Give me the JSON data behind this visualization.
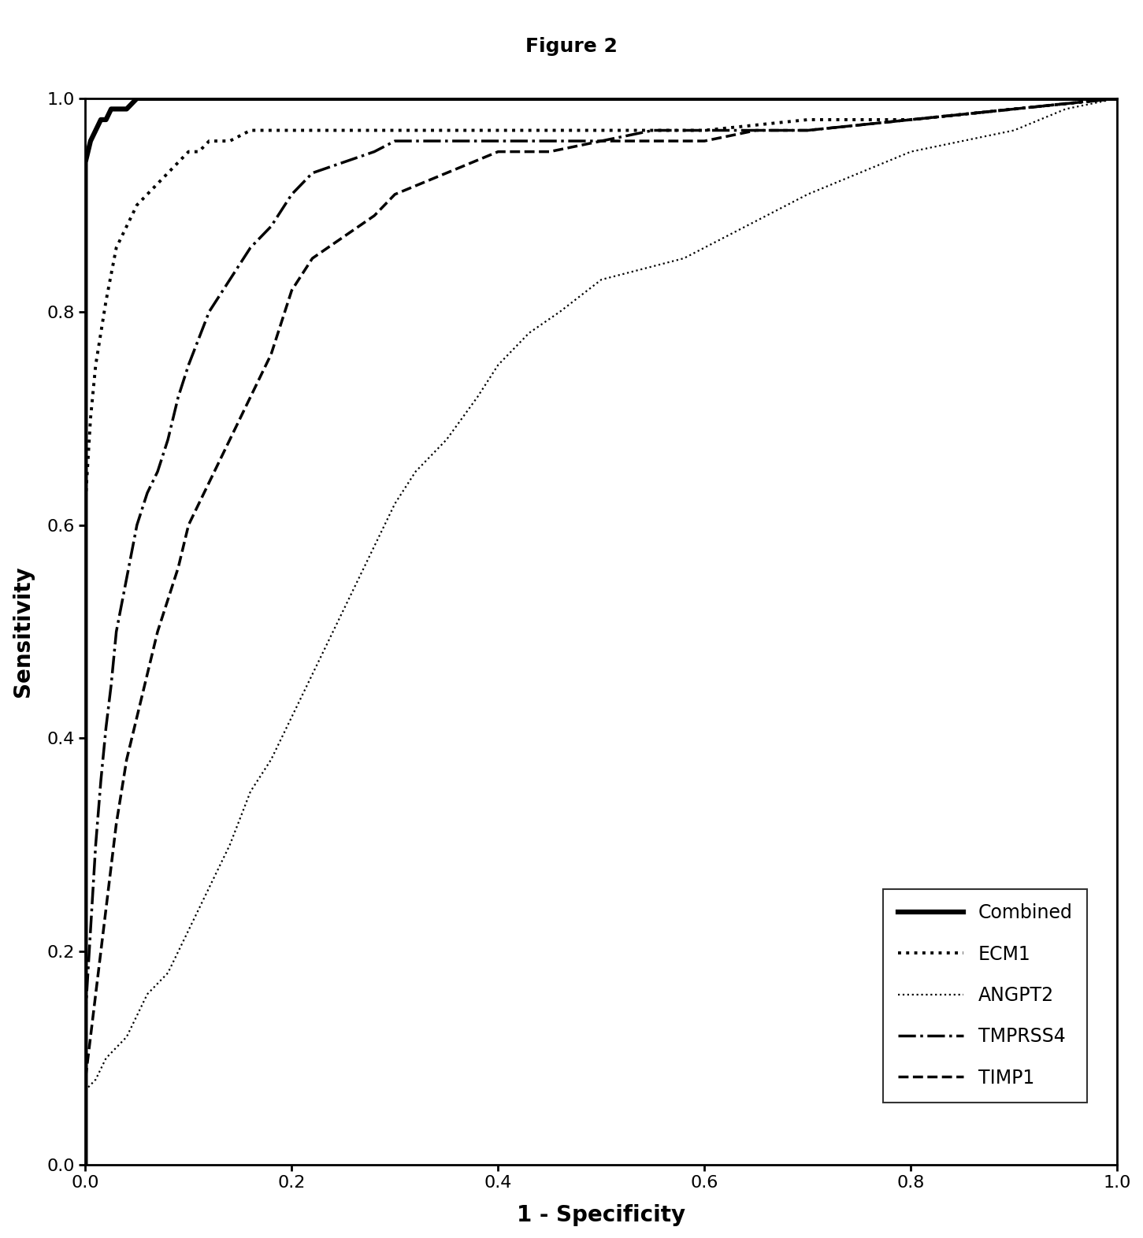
{
  "title": "Figure 2",
  "xlabel": "1 - Specificity",
  "ylabel": "Sensitivity",
  "xlim": [
    0.0,
    1.0
  ],
  "ylim": [
    0.0,
    1.0
  ],
  "xticks": [
    0.0,
    0.2,
    0.4,
    0.6,
    0.8,
    1.0
  ],
  "yticks": [
    0.0,
    0.2,
    0.4,
    0.6,
    0.8,
    1.0
  ],
  "title_fontsize": 18,
  "axis_label_fontsize": 20,
  "tick_fontsize": 16,
  "legend_fontsize": 17,
  "bg_color": "#ffffff",
  "combined_x": [
    0.0,
    0.0,
    0.005,
    0.01,
    0.015,
    0.02,
    0.025,
    0.03,
    0.04,
    0.05,
    0.06,
    0.08,
    0.1,
    0.12,
    0.15,
    0.2,
    0.3,
    0.5,
    0.7,
    1.0
  ],
  "combined_y": [
    0.0,
    0.94,
    0.96,
    0.97,
    0.98,
    0.98,
    0.99,
    0.99,
    0.99,
    1.0,
    1.0,
    1.0,
    1.0,
    1.0,
    1.0,
    1.0,
    1.0,
    1.0,
    1.0,
    1.0
  ],
  "ecm1_x": [
    0.0,
    0.0,
    0.005,
    0.01,
    0.02,
    0.03,
    0.04,
    0.05,
    0.06,
    0.07,
    0.08,
    0.09,
    0.1,
    0.11,
    0.12,
    0.14,
    0.16,
    0.18,
    0.2,
    0.22,
    0.25,
    0.3,
    0.4,
    0.5,
    0.55,
    0.6,
    0.7,
    0.8,
    0.9,
    1.0
  ],
  "ecm1_y": [
    0.0,
    0.62,
    0.7,
    0.75,
    0.81,
    0.86,
    0.88,
    0.9,
    0.91,
    0.92,
    0.93,
    0.94,
    0.95,
    0.95,
    0.96,
    0.96,
    0.97,
    0.97,
    0.97,
    0.97,
    0.97,
    0.97,
    0.97,
    0.97,
    0.97,
    0.97,
    0.98,
    0.98,
    0.99,
    1.0
  ],
  "angpt2_x": [
    0.0,
    0.0,
    0.01,
    0.02,
    0.04,
    0.06,
    0.08,
    0.1,
    0.12,
    0.14,
    0.16,
    0.18,
    0.2,
    0.22,
    0.24,
    0.26,
    0.28,
    0.3,
    0.32,
    0.35,
    0.38,
    0.4,
    0.43,
    0.46,
    0.5,
    0.54,
    0.58,
    0.62,
    0.66,
    0.7,
    0.75,
    0.8,
    0.85,
    0.9,
    0.95,
    1.0
  ],
  "angpt2_y": [
    0.0,
    0.07,
    0.08,
    0.1,
    0.12,
    0.16,
    0.18,
    0.22,
    0.26,
    0.3,
    0.35,
    0.38,
    0.42,
    0.46,
    0.5,
    0.54,
    0.58,
    0.62,
    0.65,
    0.68,
    0.72,
    0.75,
    0.78,
    0.8,
    0.83,
    0.84,
    0.85,
    0.87,
    0.89,
    0.91,
    0.93,
    0.95,
    0.96,
    0.97,
    0.99,
    1.0
  ],
  "tmprss4_x": [
    0.0,
    0.0,
    0.005,
    0.01,
    0.015,
    0.02,
    0.025,
    0.03,
    0.04,
    0.05,
    0.06,
    0.07,
    0.08,
    0.09,
    0.1,
    0.12,
    0.14,
    0.16,
    0.18,
    0.2,
    0.22,
    0.25,
    0.28,
    0.3,
    0.35,
    0.4,
    0.45,
    0.5,
    0.55,
    0.6,
    0.65,
    0.7,
    0.8,
    0.9,
    1.0
  ],
  "tmprss4_y": [
    0.0,
    0.14,
    0.22,
    0.3,
    0.36,
    0.41,
    0.45,
    0.5,
    0.55,
    0.6,
    0.63,
    0.65,
    0.68,
    0.72,
    0.75,
    0.8,
    0.83,
    0.86,
    0.88,
    0.91,
    0.93,
    0.94,
    0.95,
    0.96,
    0.96,
    0.96,
    0.96,
    0.96,
    0.97,
    0.97,
    0.97,
    0.97,
    0.98,
    0.99,
    1.0
  ],
  "timp1_x": [
    0.0,
    0.0,
    0.005,
    0.01,
    0.015,
    0.02,
    0.025,
    0.03,
    0.04,
    0.05,
    0.06,
    0.07,
    0.08,
    0.09,
    0.1,
    0.12,
    0.14,
    0.16,
    0.18,
    0.2,
    0.22,
    0.25,
    0.28,
    0.3,
    0.35,
    0.4,
    0.45,
    0.5,
    0.55,
    0.6,
    0.65,
    0.7,
    0.8,
    0.9,
    1.0
  ],
  "timp1_y": [
    0.0,
    0.08,
    0.12,
    0.16,
    0.2,
    0.24,
    0.28,
    0.32,
    0.38,
    0.42,
    0.46,
    0.5,
    0.53,
    0.56,
    0.6,
    0.64,
    0.68,
    0.72,
    0.76,
    0.82,
    0.85,
    0.87,
    0.89,
    0.91,
    0.93,
    0.95,
    0.95,
    0.96,
    0.96,
    0.96,
    0.97,
    0.97,
    0.98,
    0.99,
    1.0
  ]
}
